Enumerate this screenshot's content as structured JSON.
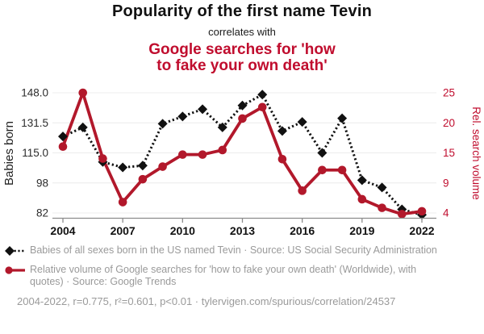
{
  "header": {
    "title": "Popularity of the first name Tevin",
    "subtitle": "correlates with",
    "red_title_lines": [
      "Google searches for 'how",
      "to fake your own death'"
    ]
  },
  "chart_data": {
    "type": "line",
    "x": [
      2004,
      2005,
      2006,
      2007,
      2008,
      2009,
      2010,
      2011,
      2012,
      2013,
      2014,
      2015,
      2016,
      2017,
      2018,
      2019,
      2020,
      2021,
      2022
    ],
    "series": [
      {
        "name": "Babies of all sexes born in the US named Tevin",
        "axis": "left",
        "color": "#111111",
        "line_style": "dashed",
        "marker": "diamond",
        "values": [
          124,
          129,
          110,
          107,
          108,
          131,
          135,
          139,
          129,
          141,
          147,
          127,
          132,
          115,
          134,
          100,
          96,
          84,
          81
        ]
      },
      {
        "name": "Relative volume of Google searches for 'how to fake your own death'",
        "axis": "right",
        "color": "#b2182b",
        "line_style": "solid",
        "marker": "circle",
        "values": [
          15.6,
          25,
          13.5,
          5.9,
          9.9,
          12.1,
          14.2,
          14.2,
          15,
          20.5,
          22.5,
          13.4,
          7.9,
          11.5,
          11.5,
          6.4,
          4.9,
          3.8,
          4.3
        ]
      }
    ],
    "left_axis": {
      "label": "Babies born",
      "ticks": [
        "148.0",
        "131.5",
        "115.0",
        "98",
        "82"
      ],
      "min": 82,
      "max": 148
    },
    "right_axis": {
      "label": "Rel. search volume",
      "ticks": [
        "25",
        "20",
        "15",
        "9",
        "4"
      ],
      "min": 4,
      "max": 25
    },
    "x_axis": {
      "ticks": [
        "2004",
        "2007",
        "2010",
        "2013",
        "2016",
        "2019",
        "2022"
      ],
      "min": 2004,
      "max": 2022
    },
    "grid": true,
    "legend_position": "below"
  },
  "legend": [
    {
      "text": "Babies of all sexes born in the US named Tevin · Source: US Social Security Administration"
    },
    {
      "text": "Relative volume of Google searches for 'how to fake your own death' (Worldwide), with quotes) · Source: Google Trends"
    }
  ],
  "footer": {
    "text": "2004-2022, r=0.775, r²=0.601, p<0.01 · tylervigen.com/spurious/correlation/24537"
  },
  "colors": {
    "title_red": "#c00d2e",
    "series_black": "#111111",
    "series_red": "#b2182b",
    "grid_line": "#ececec",
    "axis_line": "#8c8c8c",
    "tick_text": "#2b2b2b",
    "legend_text": "#9a9a9a"
  }
}
